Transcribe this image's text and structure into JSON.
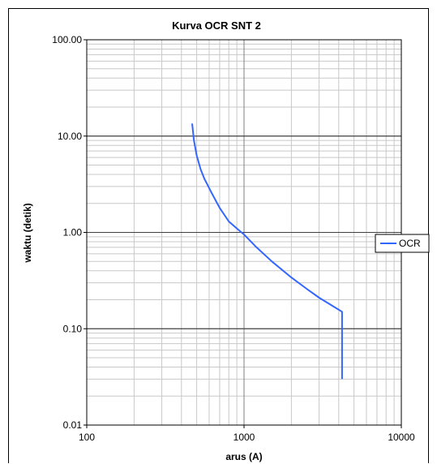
{
  "chart_data": {
    "type": "line",
    "title": "Kurva OCR SNT 2",
    "xlabel": "arus (A)",
    "ylabel": "waktu (detik)",
    "x_scale": "log",
    "y_scale": "log",
    "xlim": [
      100,
      10000
    ],
    "ylim": [
      0.01,
      100
    ],
    "x_ticks": [
      "100",
      "1000",
      "10000"
    ],
    "y_ticks": [
      "0.01",
      "0.10",
      "1.00",
      "10.00",
      "100.00"
    ],
    "grid": true,
    "legend": "right",
    "series": [
      {
        "name": "OCR",
        "color": "#3366ff",
        "x": [
          468,
          480,
          500,
          530,
          560,
          620,
          700,
          800,
          900,
          1000,
          1200,
          1500,
          2000,
          2500,
          3000,
          3500,
          4200,
          4200,
          4200
        ],
        "y": [
          13.5,
          9.0,
          6.3,
          4.5,
          3.6,
          2.6,
          1.8,
          1.3,
          1.1,
          0.95,
          0.7,
          0.5,
          0.34,
          0.26,
          0.21,
          0.18,
          0.15,
          0.1,
          0.03
        ]
      }
    ]
  }
}
